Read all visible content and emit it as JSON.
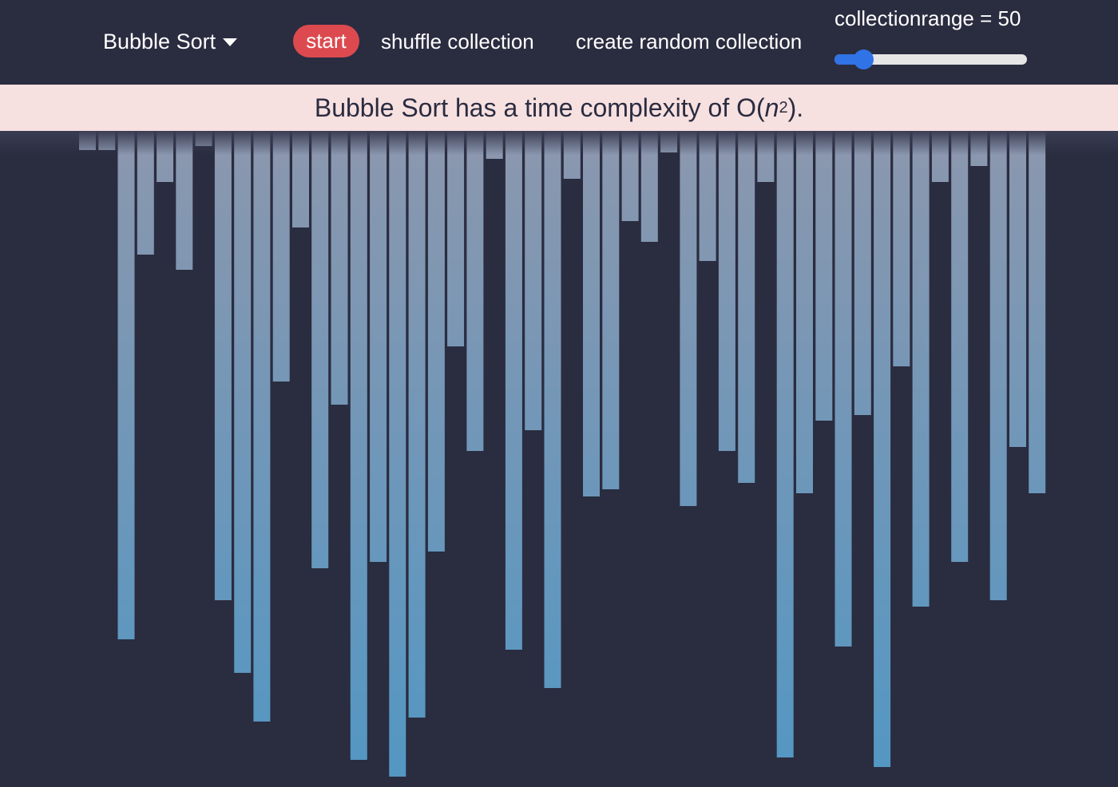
{
  "toolbar": {
    "algorithm_label": "Bubble Sort",
    "start_label": "start",
    "shuffle_label": "shuffle collection",
    "random_label": "create random collection",
    "range_label": "collectionrange = 50",
    "range_fraction": 0.15
  },
  "banner": {
    "prefix": "Bubble Sort has a time complexity of O(",
    "var": "n",
    "exp": "2",
    "suffix": ")."
  },
  "colors": {
    "start_button": "#dc4a4f",
    "slider": "#2f73e6",
    "banner_bg": "#f7e0e0",
    "background": "#2a2c40",
    "bar_top": "#8c97ae",
    "bar_bottom": "#5397c3"
  },
  "chart_data": {
    "type": "bar",
    "values": [
      24,
      24,
      637,
      155,
      64,
      174,
      19,
      588,
      679,
      740,
      314,
      121,
      548,
      343,
      788,
      540,
      809,
      735,
      527,
      270,
      401,
      35,
      650,
      375,
      698,
      60,
      458,
      449,
      113,
      139,
      27,
      470,
      163,
      401,
      441,
      64,
      785,
      454,
      363,
      646,
      356,
      797,
      295,
      596,
      64,
      540,
      44,
      588,
      396,
      454
    ]
  }
}
